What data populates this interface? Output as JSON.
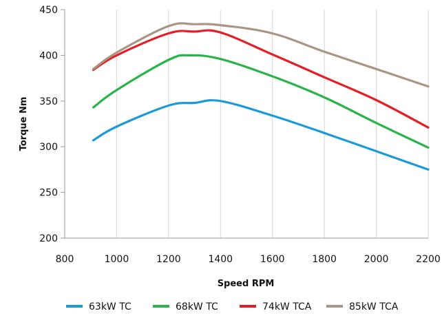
{
  "chart_data": {
    "type": "line",
    "title": "",
    "xlabel": "Speed RPM",
    "ylabel": "Torque Nm",
    "xlim": [
      800,
      2200
    ],
    "ylim": [
      200,
      450
    ],
    "xticks": [
      800,
      1000,
      1200,
      1400,
      1600,
      1800,
      2000,
      2200
    ],
    "yticks": [
      200,
      250,
      300,
      350,
      400,
      450
    ],
    "grid": {
      "vertical": true,
      "horizontal": false
    },
    "legend": "bottom",
    "series": [
      {
        "name": "63kW TC",
        "color": "#1b9ad6",
        "points": [
          [
            910,
            307
          ],
          [
            1000,
            322
          ],
          [
            1200,
            345
          ],
          [
            1300,
            348
          ],
          [
            1400,
            350
          ],
          [
            1600,
            334
          ],
          [
            1800,
            315
          ],
          [
            2000,
            295
          ],
          [
            2200,
            275
          ]
        ]
      },
      {
        "name": "68kW TC",
        "color": "#2ab34a",
        "points": [
          [
            910,
            343
          ],
          [
            1000,
            362
          ],
          [
            1200,
            395
          ],
          [
            1280,
            400
          ],
          [
            1400,
            396
          ],
          [
            1600,
            377
          ],
          [
            1800,
            354
          ],
          [
            2000,
            326
          ],
          [
            2200,
            299
          ]
        ]
      },
      {
        "name": "74kW TCA",
        "color": "#e31e26",
        "points": [
          [
            910,
            384
          ],
          [
            1000,
            400
          ],
          [
            1200,
            424
          ],
          [
            1300,
            426
          ],
          [
            1400,
            425
          ],
          [
            1600,
            401
          ],
          [
            1800,
            376
          ],
          [
            2000,
            351
          ],
          [
            2200,
            321
          ]
        ]
      },
      {
        "name": "85kW TCA",
        "color": "#a89582",
        "points": [
          [
            910,
            385
          ],
          [
            1000,
            403
          ],
          [
            1200,
            432
          ],
          [
            1300,
            434
          ],
          [
            1400,
            433
          ],
          [
            1600,
            424
          ],
          [
            1800,
            404
          ],
          [
            2000,
            385
          ],
          [
            2200,
            366
          ]
        ]
      }
    ]
  }
}
